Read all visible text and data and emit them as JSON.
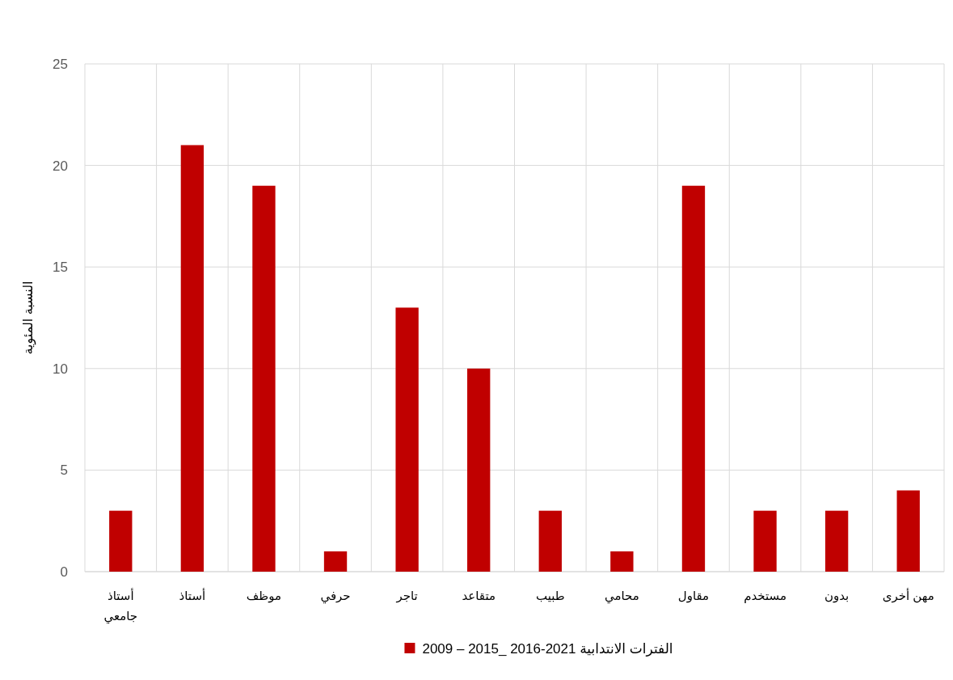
{
  "chart_data": {
    "type": "bar",
    "ylabel": "النسبة المئوية",
    "categories": [
      "أستاذ جامعي",
      "أستاذ",
      "موظف",
      "حرفي",
      "تاجر",
      "متقاعد",
      "طبيب",
      "محامي",
      "مقاول",
      "مستخدم",
      "بدون",
      "مهن أخرى"
    ],
    "series": [
      {
        "name": "2009 – 2015_ 2016-2021 الفترات الانتدابية",
        "color": "#c00000",
        "values": [
          3,
          21,
          19,
          1,
          13,
          10,
          3,
          1,
          19,
          3,
          3,
          4
        ]
      }
    ],
    "ylim": [
      0,
      25
    ],
    "yticks": [
      0,
      5,
      10,
      15,
      20,
      25
    ],
    "grid": true,
    "legend": "bottom"
  }
}
